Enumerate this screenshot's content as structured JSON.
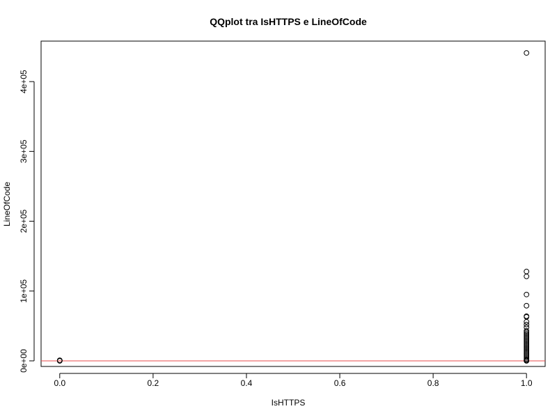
{
  "chart_data": {
    "type": "scatter",
    "title": "QQplot tra IsHTTPS e LineOfCode",
    "xlabel": "IsHTTPS",
    "ylabel": "LineOfCode",
    "xlim": [
      -0.04,
      1.04
    ],
    "ylim": [
      -8000,
      458000
    ],
    "x_ticks": [
      0.0,
      0.2,
      0.4,
      0.6,
      0.8,
      1.0
    ],
    "x_tick_labels": [
      "0.0",
      "0.2",
      "0.4",
      "0.6",
      "0.8",
      "1.0"
    ],
    "y_ticks": [
      0,
      100000,
      200000,
      300000,
      400000
    ],
    "y_tick_labels": [
      "0e+00",
      "1e+05",
      "2e+05",
      "3e+05",
      "4e+05"
    ],
    "grid": false,
    "reference_line": {
      "y": 0,
      "color": "#e8484a"
    },
    "series": [
      {
        "points": [
          [
            0,
            0
          ],
          [
            0,
            200
          ],
          [
            0,
            400
          ],
          [
            0,
            600
          ],
          [
            0,
            800
          ],
          [
            1,
            441000
          ],
          [
            1,
            128000
          ],
          [
            1,
            121000
          ],
          [
            1,
            95000
          ],
          [
            1,
            79000
          ],
          [
            1,
            64000
          ],
          [
            1,
            63000
          ],
          [
            1,
            56000
          ],
          [
            1,
            52000
          ],
          [
            1,
            48000
          ],
          [
            1,
            43000
          ],
          [
            1,
            41000
          ],
          [
            1,
            39000
          ],
          [
            1,
            37000
          ],
          [
            1,
            35000
          ],
          [
            1,
            33000
          ],
          [
            1,
            31000
          ],
          [
            1,
            29000
          ],
          [
            1,
            27000
          ],
          [
            1,
            25000
          ],
          [
            1,
            23000
          ],
          [
            1,
            21000
          ],
          [
            1,
            19000
          ],
          [
            1,
            17000
          ],
          [
            1,
            15000
          ],
          [
            1,
            13000
          ],
          [
            1,
            11000
          ],
          [
            1,
            9000
          ],
          [
            1,
            7000
          ],
          [
            1,
            5000
          ],
          [
            1,
            3000
          ],
          [
            1,
            1500
          ],
          [
            1,
            500
          ],
          [
            1,
            0
          ]
        ]
      }
    ]
  }
}
